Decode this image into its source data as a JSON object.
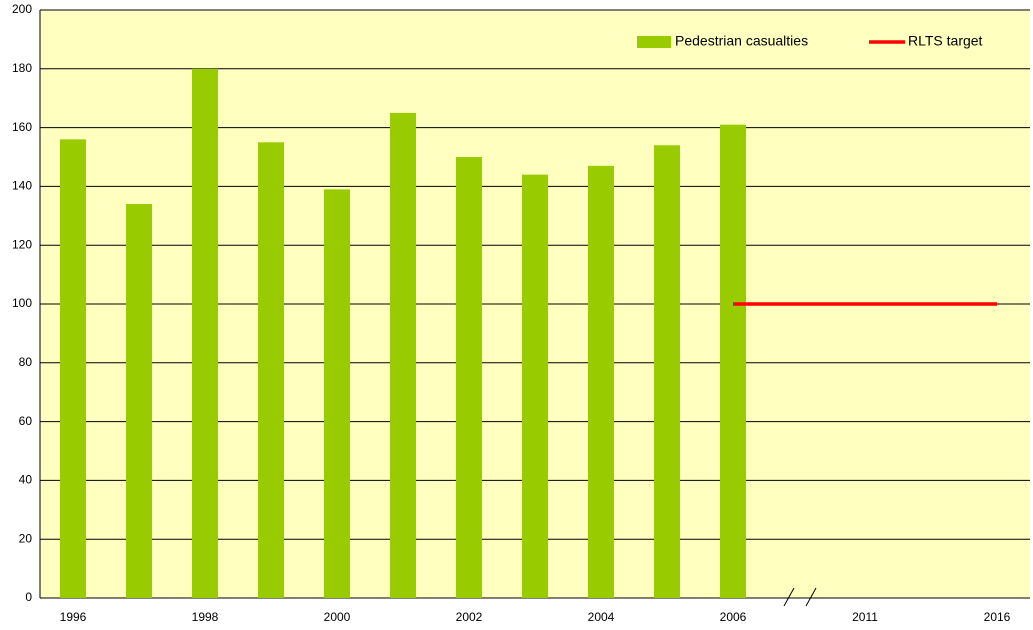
{
  "chart_data": {
    "type": "bar",
    "categories": [
      "1996",
      null,
      "1998",
      null,
      "2000",
      null,
      "2002",
      null,
      "2004",
      null,
      "2006",
      null,
      "2011",
      null,
      "2016"
    ],
    "series": [
      {
        "name": "Pedestrian casualties",
        "type": "bar",
        "color": "#99cc00",
        "values": [
          156,
          134,
          180,
          155,
          139,
          165,
          150,
          144,
          147,
          154,
          161,
          null,
          null,
          null,
          null
        ]
      },
      {
        "name": "RLTS target",
        "type": "line",
        "color": "#ff0000",
        "values": [
          null,
          null,
          null,
          null,
          null,
          null,
          null,
          null,
          null,
          null,
          100,
          100,
          100,
          100,
          100
        ]
      }
    ],
    "ylim": [
      0,
      200
    ],
    "yticks": [
      0,
      20,
      40,
      60,
      80,
      100,
      120,
      140,
      160,
      180,
      200
    ],
    "grid": true,
    "legend": "top-right",
    "background": "#ffffc0"
  }
}
